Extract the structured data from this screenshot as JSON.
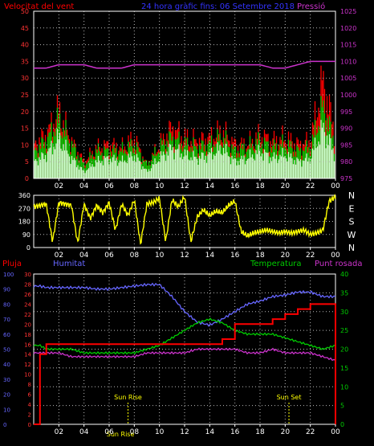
{
  "header": {
    "left_title": "Velocitat del vent",
    "center_title": "24 hora gràfic fins: 06 Setembre 2018",
    "right_title": "Pressió"
  },
  "colors": {
    "background": "#000000",
    "grid": "#b8b8b8",
    "frame": "#ffffff",
    "wind_gust": "#ff0000",
    "wind_avg": "#00c800",
    "wind_speed": "#ccffcc",
    "pressure": "#cc33cc",
    "direction": "#ffff00",
    "rain": "#ff0000",
    "humidity": "#6666ff",
    "temperature": "#00cc00",
    "dewpoint": "#cc33cc",
    "sun_label": "#ffff00"
  },
  "time_ticks": [
    "02",
    "04",
    "06",
    "08",
    "10",
    "12",
    "14",
    "16",
    "18",
    "20",
    "22",
    "00"
  ],
  "chart_data": [
    {
      "id": "wind_pressure",
      "type": "area",
      "left_axis": {
        "label": "Velocitat del vent",
        "ticks": [
          "0",
          "5",
          "10",
          "15",
          "20",
          "25",
          "30",
          "35",
          "40",
          "45",
          "50"
        ],
        "ylim": [
          0,
          50
        ]
      },
      "right_axis": {
        "label": "Pressió",
        "ticks": [
          "975",
          "980",
          "985",
          "990",
          "995",
          "1000",
          "1005",
          "1010",
          "1015",
          "1020",
          "1025"
        ],
        "ylim": [
          975,
          1025
        ]
      },
      "x_ticks": [
        "02",
        "04",
        "06",
        "08",
        "10",
        "12",
        "14",
        "16",
        "18",
        "20",
        "22",
        "00"
      ],
      "hours": [
        0,
        1,
        2,
        3,
        4,
        5,
        6,
        7,
        8,
        9,
        10,
        11,
        12,
        13,
        14,
        15,
        16,
        17,
        18,
        19,
        20,
        21,
        22,
        23,
        24
      ],
      "series": [
        {
          "name": "Pressió",
          "axis": "right",
          "values": [
            1008,
            1008,
            1009,
            1009,
            1009,
            1008,
            1008,
            1008,
            1009,
            1009,
            1009,
            1009,
            1009,
            1009,
            1009,
            1009,
            1009,
            1009,
            1009,
            1008,
            1008,
            1009,
            1010,
            1010,
            1010
          ]
        },
        {
          "axis": "left",
          "values": [
            10,
            13,
            20,
            11,
            5,
            9,
            10,
            9,
            12,
            4,
            10,
            15,
            12,
            11,
            12,
            14,
            10,
            10,
            13,
            11,
            12,
            10,
            11,
            29,
            13
          ]
        },
        {
          "axis": "left",
          "values": [
            8,
            11,
            17,
            10,
            4,
            8,
            8,
            8,
            10,
            4,
            9,
            12,
            10,
            9,
            10,
            12,
            8,
            9,
            11,
            9,
            10,
            8,
            9,
            21,
            10
          ]
        },
        {
          "axis": "left",
          "values": [
            5,
            7,
            12,
            6,
            2,
            5,
            6,
            5,
            7,
            2,
            6,
            9,
            7,
            6,
            7,
            9,
            5,
            6,
            8,
            6,
            7,
            5,
            6,
            15,
            7
          ]
        }
      ]
    },
    {
      "id": "wind_direction",
      "type": "line",
      "left_axis": {
        "ticks": [
          "0",
          "90",
          "180",
          "270",
          "360"
        ],
        "ylim": [
          0,
          360
        ]
      },
      "right_labels": [
        "N",
        "W",
        "S",
        "E",
        "N"
      ],
      "hours": [
        0,
        1,
        1.5,
        2,
        3,
        3.5,
        4,
        4.5,
        5,
        5.5,
        6,
        6.5,
        7,
        7.5,
        8,
        8.5,
        9,
        9.5,
        10,
        10.5,
        11,
        11.5,
        12,
        12.5,
        13,
        13.5,
        14,
        14.5,
        15,
        15.5,
        16,
        16.5,
        17,
        17.5,
        18,
        18.5,
        19,
        19.5,
        20,
        20.5,
        21,
        21.5,
        22,
        22.5,
        23,
        23.5,
        24
      ],
      "values": [
        280,
        300,
        40,
        310,
        290,
        30,
        300,
        200,
        290,
        240,
        310,
        120,
        300,
        220,
        330,
        20,
        300,
        310,
        340,
        40,
        330,
        280,
        350,
        40,
        210,
        260,
        220,
        250,
        240,
        290,
        320,
        110,
        80,
        100,
        110,
        120,
        110,
        100,
        110,
        100,
        110,
        120,
        90,
        100,
        120,
        320,
        350
      ]
    },
    {
      "id": "temp_hum",
      "type": "line",
      "axes": {
        "pluja": {
          "label": "Pluja",
          "ticks": [
            "0",
            "2",
            "4",
            "6",
            "8",
            "10",
            "12",
            "14",
            "16",
            "18",
            "20",
            "22",
            "24",
            "26",
            "28",
            "30"
          ],
          "ylim": [
            0,
            30
          ]
        },
        "humitat": {
          "label": "Humitat",
          "ticks": [
            "0",
            "10",
            "20",
            "30",
            "40",
            "50",
            "60",
            "70",
            "80",
            "90",
            "100"
          ],
          "ylim": [
            0,
            100
          ]
        },
        "temperatura": {
          "label": "Temperatura",
          "ticks": [
            "0",
            "5",
            "10",
            "15",
            "20",
            "25",
            "30",
            "35",
            "40"
          ],
          "ylim": [
            0,
            40
          ]
        },
        "punt_rosada": {
          "label": "Punt rosada"
        }
      },
      "x_ticks": [
        "02",
        "04",
        "06",
        "08",
        "10",
        "12",
        "14",
        "16",
        "18",
        "20",
        "22",
        "00"
      ],
      "annotations": [
        {
          "text": "Sun Rise",
          "hour": 7.5
        },
        {
          "text": "Sun Set",
          "hour": 20.3
        },
        {
          "text": "Sun Rise",
          "hour": 6.9
        }
      ],
      "hours": [
        0,
        0.5,
        1,
        2,
        3,
        4,
        5,
        6,
        7,
        8,
        9,
        10,
        11,
        12,
        13,
        14,
        15,
        16,
        17,
        18,
        19,
        20,
        21,
        22,
        23,
        24
      ],
      "series": [
        {
          "name": "Humitat",
          "axis": "humitat",
          "values": [
            92,
            92,
            91,
            91,
            91,
            91,
            90,
            90,
            91,
            92,
            93,
            93,
            85,
            75,
            68,
            66,
            70,
            75,
            80,
            82,
            85,
            86,
            88,
            88,
            85,
            85
          ]
        },
        {
          "name": "Temperatura",
          "axis": "temperatura",
          "values": [
            21,
            21,
            20,
            20,
            20,
            19,
            19,
            19,
            19,
            19,
            20,
            21,
            23,
            25,
            27,
            28,
            27,
            25,
            24,
            24,
            24,
            23,
            22,
            21,
            20,
            21
          ]
        },
        {
          "name": "Punt rosada",
          "axis": "temperatura",
          "values": [
            19,
            19,
            19,
            19,
            18,
            18,
            18,
            18,
            18,
            18,
            19,
            19,
            19,
            19,
            20,
            20,
            20,
            20,
            19,
            19,
            20,
            19,
            19,
            19,
            18,
            17
          ]
        },
        {
          "name": "Pluja",
          "axis": "pluja",
          "values": [
            0,
            14,
            16,
            16,
            16,
            16,
            16,
            16,
            16,
            16,
            16,
            16,
            16,
            16,
            16,
            16,
            17,
            20,
            20,
            20,
            21,
            22,
            23,
            24,
            24,
            0
          ]
        }
      ]
    }
  ]
}
